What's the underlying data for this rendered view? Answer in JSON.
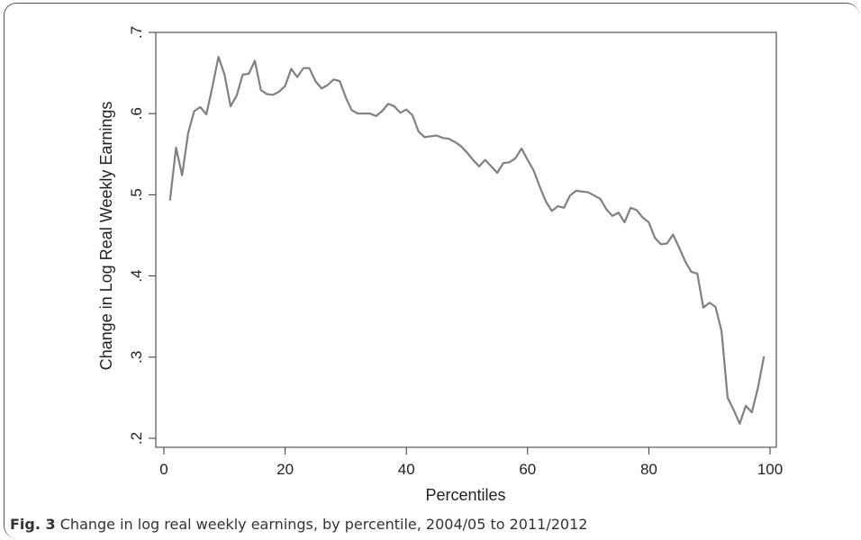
{
  "caption": {
    "label": "Fig. 3",
    "text": "Change in log real weekly earnings, by percentile, 2004/05 to 2011/2012"
  },
  "chart_data": {
    "type": "line",
    "title": "",
    "xlabel": "Percentiles",
    "ylabel": "Change in Log Real Weekly Earnings",
    "xlim": [
      0,
      100
    ],
    "ylim": [
      0.2,
      0.7
    ],
    "x_ticks": [
      0,
      20,
      40,
      60,
      80,
      100
    ],
    "x_tick_labels": [
      "0",
      "20",
      "40",
      "60",
      "80",
      "100"
    ],
    "y_ticks": [
      0.2,
      0.3,
      0.4,
      0.5,
      0.6,
      0.7
    ],
    "y_tick_labels": [
      ".2",
      ".3",
      ".4",
      ".5",
      ".6",
      ".7"
    ],
    "grid": false,
    "line_color": "#808080",
    "series": [
      {
        "x": [
          1,
          2,
          3,
          4,
          5,
          6,
          7,
          8,
          9,
          10,
          11,
          12,
          13,
          14,
          15,
          16,
          17,
          18,
          19,
          20,
          21,
          22,
          23,
          24,
          25,
          26,
          27,
          28,
          29,
          30,
          31,
          32,
          33,
          34,
          35,
          36,
          37,
          38,
          39,
          40,
          41,
          42,
          43,
          44,
          45,
          46,
          47,
          48,
          49,
          50,
          51,
          52,
          53,
          54,
          55,
          56,
          57,
          58,
          59,
          60,
          61,
          62,
          63,
          64,
          65,
          66,
          67,
          68,
          69,
          70,
          71,
          72,
          73,
          74,
          75,
          76,
          77,
          78,
          79,
          80,
          81,
          82,
          83,
          84,
          85,
          86,
          87,
          88,
          89,
          90,
          91,
          92,
          93,
          94,
          95,
          96,
          97,
          98,
          99
        ],
        "values": [
          0.493,
          0.558,
          0.524,
          0.576,
          0.603,
          0.608,
          0.599,
          0.633,
          0.67,
          0.648,
          0.609,
          0.622,
          0.648,
          0.649,
          0.665,
          0.629,
          0.624,
          0.623,
          0.627,
          0.634,
          0.655,
          0.645,
          0.656,
          0.656,
          0.64,
          0.631,
          0.635,
          0.642,
          0.64,
          0.62,
          0.604,
          0.6,
          0.6,
          0.6,
          0.597,
          0.603,
          0.612,
          0.609,
          0.601,
          0.605,
          0.598,
          0.578,
          0.571,
          0.572,
          0.573,
          0.57,
          0.569,
          0.565,
          0.56,
          0.552,
          0.543,
          0.535,
          0.543,
          0.535,
          0.527,
          0.539,
          0.54,
          0.545,
          0.557,
          0.543,
          0.53,
          0.51,
          0.492,
          0.48,
          0.486,
          0.484,
          0.499,
          0.505,
          0.504,
          0.503,
          0.499,
          0.495,
          0.482,
          0.474,
          0.478,
          0.466,
          0.484,
          0.481,
          0.472,
          0.466,
          0.447,
          0.439,
          0.44,
          0.451,
          0.435,
          0.418,
          0.405,
          0.403,
          0.361,
          0.367,
          0.362,
          0.332,
          0.25,
          0.235,
          0.218,
          0.24,
          0.232,
          0.262,
          0.301
        ]
      }
    ]
  }
}
